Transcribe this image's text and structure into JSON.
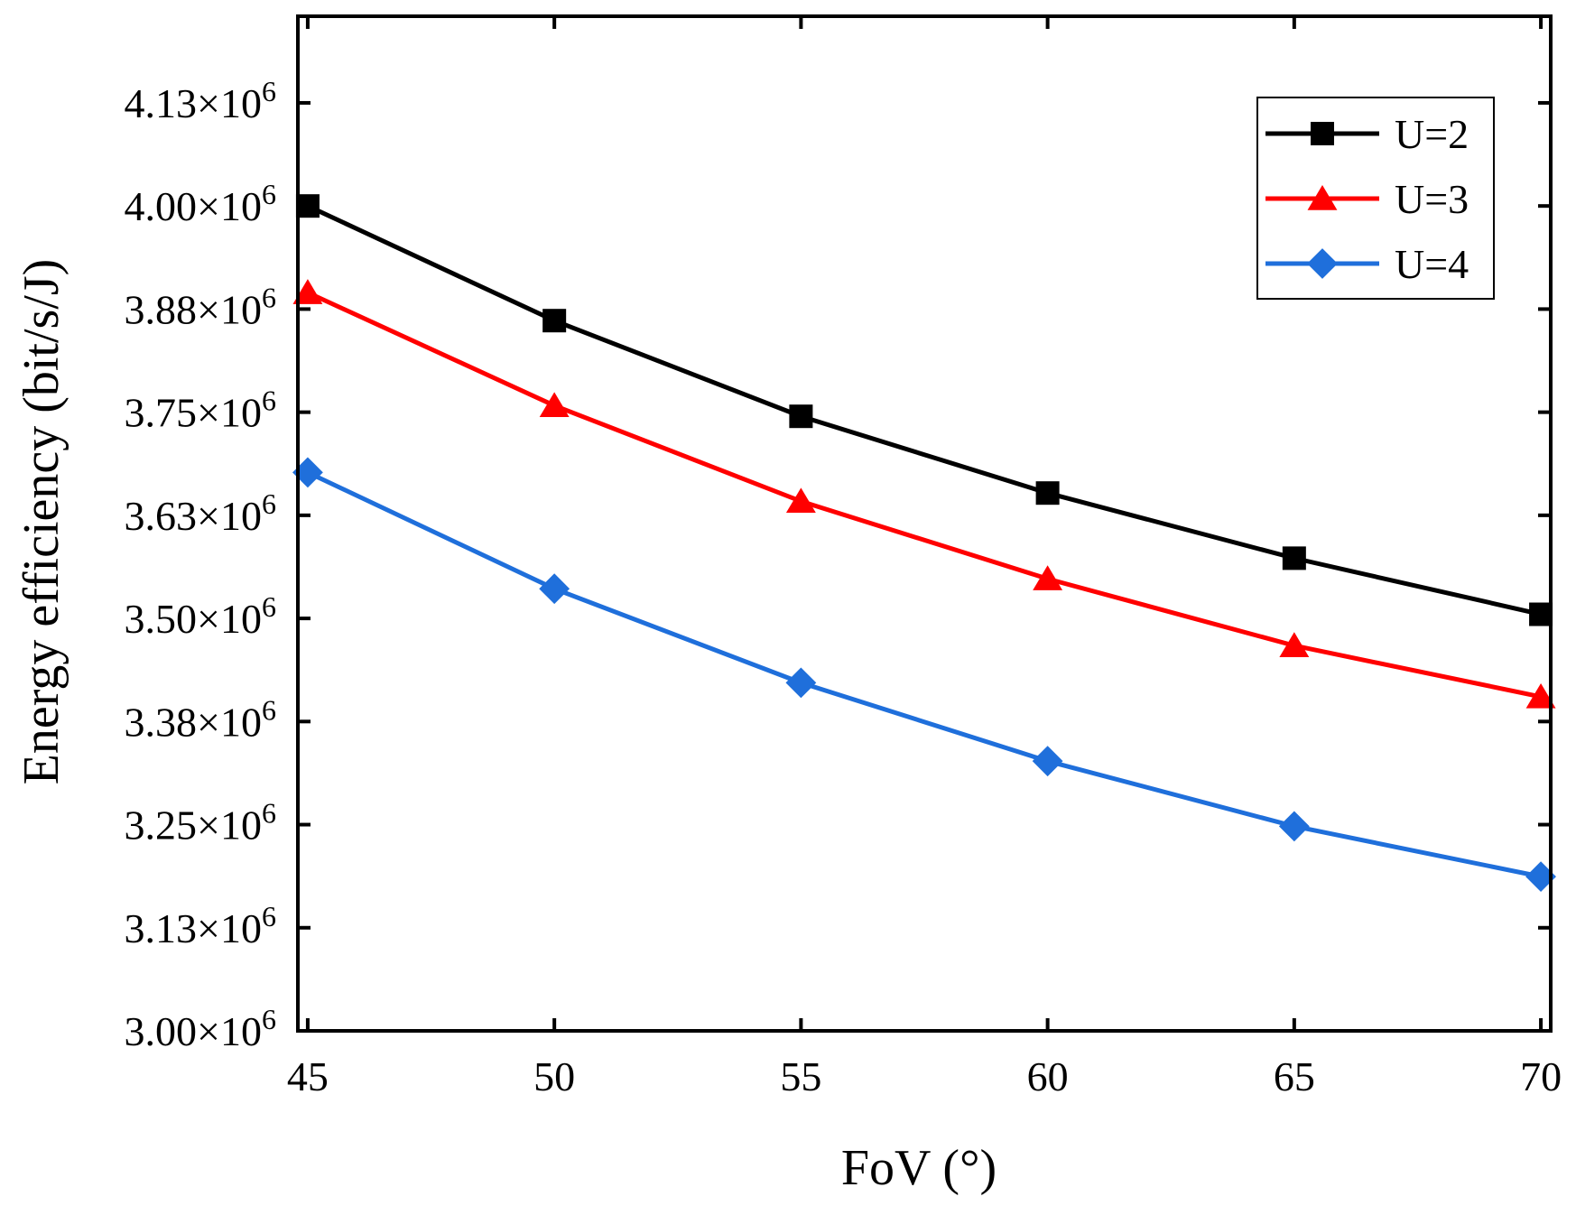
{
  "chart_data": {
    "type": "line",
    "title": "",
    "xlabel": "FoV (°)",
    "ylabel": "Energy efficiency (bit/s/J)",
    "x": [
      45,
      50,
      55,
      60,
      65,
      70
    ],
    "xlim": [
      44.8,
      70.2
    ],
    "ylim": [
      3000000,
      4230000
    ],
    "xticks": [
      45,
      50,
      55,
      60,
      65,
      70
    ],
    "xtick_labels": [
      "45",
      "50",
      "55",
      "60",
      "65",
      "70"
    ],
    "yticks": [
      3000000,
      3125000,
      3250000,
      3375000,
      3500000,
      3625000,
      3750000,
      3875000,
      4000000,
      4125000
    ],
    "ytick_labels": [
      {
        "mantissa": "3.00×10",
        "exp": "6"
      },
      {
        "mantissa": "3.13×10",
        "exp": "6"
      },
      {
        "mantissa": "3.25×10",
        "exp": "6"
      },
      {
        "mantissa": "3.38×10",
        "exp": "6"
      },
      {
        "mantissa": "3.50×10",
        "exp": "6"
      },
      {
        "mantissa": "3.63×10",
        "exp": "6"
      },
      {
        "mantissa": "3.75×10",
        "exp": "6"
      },
      {
        "mantissa": "3.88×10",
        "exp": "6"
      },
      {
        "mantissa": "4.00×10",
        "exp": "6"
      },
      {
        "mantissa": "4.13×10",
        "exp": "6"
      }
    ],
    "grid": false,
    "legend_position": "top-right",
    "series": [
      {
        "name": "U=2",
        "color": "#000000",
        "marker": "square",
        "values": [
          4000000,
          3861000,
          3745000,
          3652000,
          3573000,
          3505000
        ]
      },
      {
        "name": "U=3",
        "color": "#ff0000",
        "marker": "triangle",
        "values": [
          3895000,
          3758000,
          3642000,
          3548000,
          3467000,
          3405000
        ]
      },
      {
        "name": "U=4",
        "color": "#1f6fdb",
        "marker": "diamond",
        "values": [
          3677000,
          3536000,
          3422000,
          3327000,
          3248000,
          3187000
        ]
      }
    ]
  }
}
